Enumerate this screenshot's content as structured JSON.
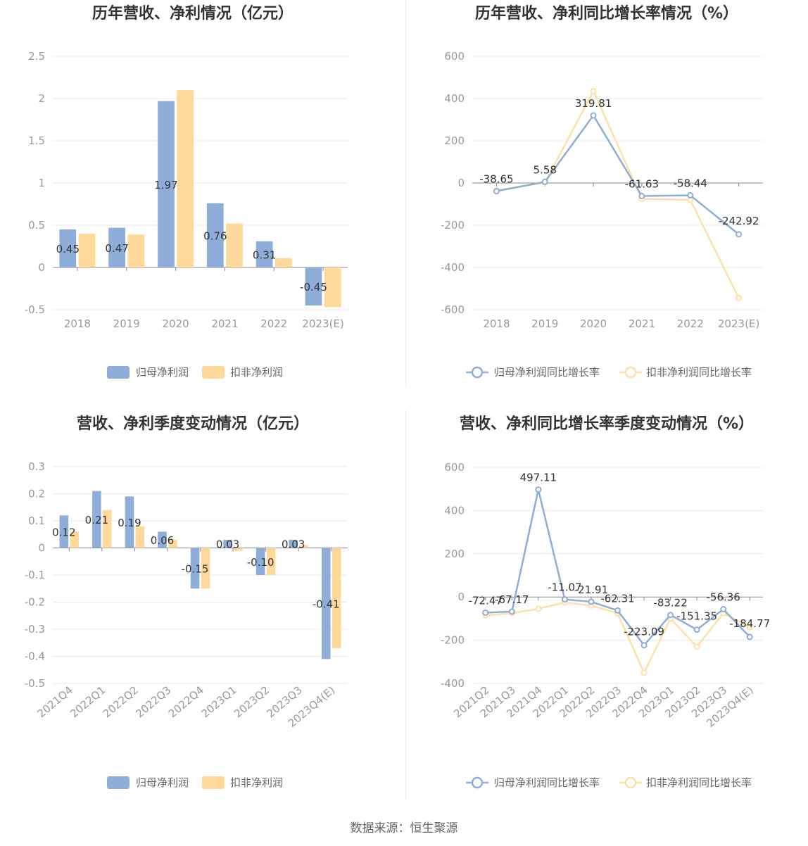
{
  "source": "数据来源：恒生聚源",
  "colors": {
    "net": "#8fadd9",
    "deducted": "#ffd999",
    "netLine": "#8fadd9",
    "deductedLine": "#ffe0a6"
  },
  "chart_data": [
    {
      "id": "annual-bar",
      "type": "bar",
      "title": "历年营收、净利情况（亿元）",
      "categories": [
        "2018",
        "2019",
        "2020",
        "2021",
        "2022",
        "2023(E)"
      ],
      "yticks": [
        "-0.5",
        "0",
        "0.5",
        "1",
        "1.5",
        "2",
        "2.5"
      ],
      "ylim": [
        -0.5,
        2.5
      ],
      "series": [
        {
          "name": "归母净利润",
          "values": [
            0.45,
            0.47,
            1.97,
            0.76,
            0.31,
            -0.45
          ],
          "labels": [
            "0.45",
            "0.47",
            "1.97",
            "0.76",
            "0.31",
            "-0.45"
          ]
        },
        {
          "name": "扣非净利润",
          "values": [
            0.4,
            0.39,
            2.1,
            0.52,
            0.11,
            -0.47
          ]
        }
      ]
    },
    {
      "id": "annual-line",
      "type": "line",
      "title": "历年营收、净利同比增长率情况（%）",
      "categories": [
        "2018",
        "2019",
        "2020",
        "2021",
        "2022",
        "2023(E)"
      ],
      "yticks": [
        "-600",
        "-400",
        "-200",
        "0",
        "200",
        "400",
        "600"
      ],
      "ylim": [
        -600,
        600
      ],
      "series": [
        {
          "name": "归母净利润同比增长率",
          "values": [
            -38.65,
            5.58,
            319.81,
            -61.63,
            -58.44,
            -242.92
          ],
          "labels": [
            "-38.65",
            "5.58",
            "319.81",
            "-61.63",
            "-58.44",
            "-242.92"
          ]
        },
        {
          "name": "扣非净利润同比增长率",
          "values": [
            -35,
            2,
            435,
            -75,
            -80,
            -545
          ]
        }
      ]
    },
    {
      "id": "quarterly-bar",
      "type": "bar",
      "title": "营收、净利季度变动情况（亿元）",
      "categories": [
        "2021Q4",
        "2022Q1",
        "2022Q2",
        "2022Q3",
        "2022Q4",
        "2023Q1",
        "2023Q2",
        "2023Q3",
        "2023Q4(E)"
      ],
      "yticks": [
        "-0.5",
        "-0.4",
        "-0.3",
        "-0.2",
        "-0.1",
        "0",
        "0.1",
        "0.2",
        "0.3"
      ],
      "ylim": [
        -0.5,
        0.3
      ],
      "series": [
        {
          "name": "归母净利润",
          "values": [
            0.12,
            0.21,
            0.19,
            0.06,
            -0.15,
            0.03,
            -0.1,
            0.03,
            -0.41
          ],
          "labels": [
            "0.12",
            "0.21",
            "0.19",
            "0.06",
            "-0.15",
            "0.03",
            "-0.10",
            "0.03",
            "-0.41"
          ]
        },
        {
          "name": "扣非净利润",
          "values": [
            0.06,
            0.14,
            0.08,
            0.03,
            -0.15,
            -0.01,
            -0.1,
            0.01,
            -0.37
          ]
        }
      ]
    },
    {
      "id": "quarterly-line",
      "type": "line",
      "title": "营收、净利同比增长率季度变动情况（%）",
      "categories": [
        "2021Q2",
        "2021Q3",
        "2021Q4",
        "2022Q1",
        "2022Q2",
        "2022Q3",
        "2022Q4",
        "2023Q1",
        "2023Q2",
        "2023Q3",
        "2023Q4(E)"
      ],
      "yticks": [
        "-400",
        "-200",
        "0",
        "200",
        "400",
        "600"
      ],
      "ylim": [
        -400,
        600
      ],
      "series": [
        {
          "name": "归母净利润同比增长率",
          "values": [
            -72.47,
            -67.17,
            497.11,
            -11.07,
            -21.91,
            -62.31,
            -223.09,
            -83.22,
            -151.35,
            -56.36,
            -184.77
          ],
          "labels": [
            "-72.47",
            "-67.17",
            "497.11",
            "-11.07",
            "-21.91",
            "-62.31",
            "-223.09",
            "-83.22",
            "-151.35",
            "-56.36",
            "-184.77"
          ]
        },
        {
          "name": "扣非净利润同比增长率",
          "values": [
            -85,
            -75,
            -55,
            -25,
            -40,
            -75,
            -350,
            -100,
            -230,
            -75,
            -140
          ]
        }
      ]
    }
  ]
}
